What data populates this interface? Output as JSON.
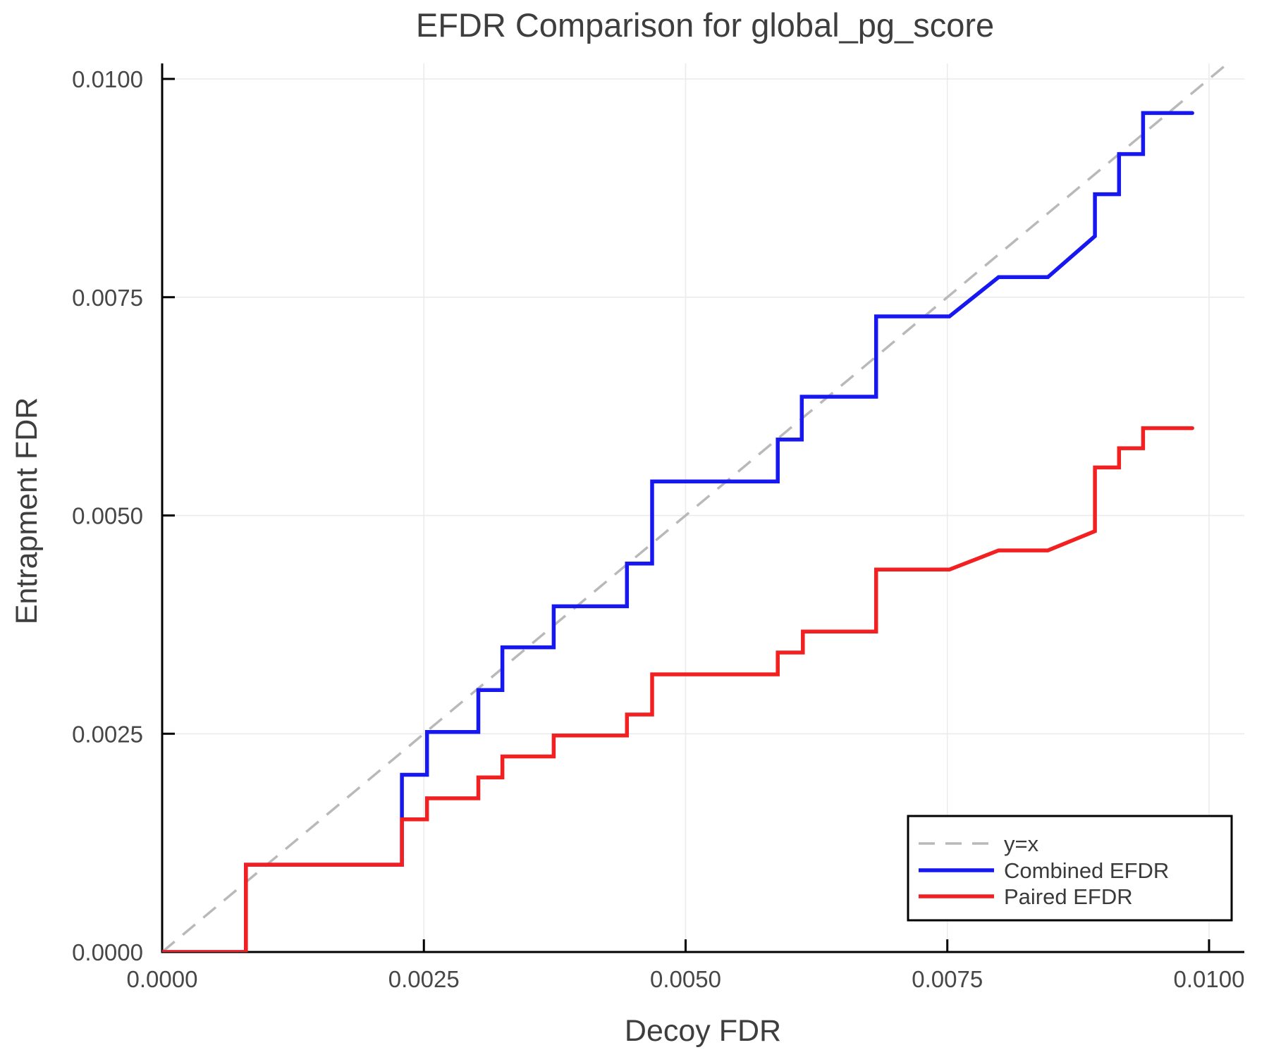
{
  "chart_data": {
    "type": "line",
    "title": "EFDR Comparison for global_pg_score",
    "xlabel": "Decoy FDR",
    "ylabel": "Entrapment FDR",
    "grid": true,
    "legend_position": "bottom-right",
    "xlim": [
      0,
      0.010337
    ],
    "ylim": [
      0,
      0.010178
    ],
    "xticks": {
      "values": [
        0.0,
        0.0025,
        0.005,
        0.0075,
        0.01
      ],
      "labels": [
        "0.0000",
        "0.0025",
        "0.0050",
        "0.0075",
        "0.0100"
      ]
    },
    "yticks": {
      "values": [
        0.0,
        0.0025,
        0.005,
        0.0075,
        0.01
      ],
      "labels": [
        "0.0000",
        "0.0025",
        "0.0050",
        "0.0075",
        "0.0100"
      ]
    },
    "reference_line": {
      "label": "y=x",
      "style": "dashed",
      "color": "#b9b9b9",
      "from": [
        0,
        0
      ],
      "to": [
        0.010337,
        0.010337
      ]
    },
    "series": [
      {
        "name": "Combined EFDR",
        "color": "#1717f0",
        "points": [
          [
            0.0,
            0.0
          ],
          [
            0.0008,
            0.0
          ],
          [
            0.0008,
            0.001
          ],
          [
            0.00229,
            0.001
          ],
          [
            0.00229,
            0.00203
          ],
          [
            0.00253,
            0.00203
          ],
          [
            0.00253,
            0.00252
          ],
          [
            0.00302,
            0.00252
          ],
          [
            0.00302,
            0.003
          ],
          [
            0.00325,
            0.003
          ],
          [
            0.00325,
            0.00349
          ],
          [
            0.00374,
            0.00349
          ],
          [
            0.00374,
            0.00396
          ],
          [
            0.00444,
            0.00396
          ],
          [
            0.00444,
            0.00445
          ],
          [
            0.00468,
            0.00445
          ],
          [
            0.00468,
            0.00539
          ],
          [
            0.00588,
            0.00539
          ],
          [
            0.00588,
            0.00587
          ],
          [
            0.00611,
            0.00587
          ],
          [
            0.00611,
            0.00636
          ],
          [
            0.00682,
            0.00636
          ],
          [
            0.00682,
            0.00728
          ],
          [
            0.00752,
            0.00728
          ],
          [
            0.00799,
            0.00773
          ],
          [
            0.00846,
            0.00773
          ],
          [
            0.00891,
            0.0082
          ],
          [
            0.00891,
            0.00868
          ],
          [
            0.00914,
            0.00868
          ],
          [
            0.00914,
            0.00914
          ],
          [
            0.00937,
            0.00914
          ],
          [
            0.00937,
            0.00961
          ],
          [
            0.00984,
            0.00961
          ]
        ]
      },
      {
        "name": "Paired EFDR",
        "color": "#f22020",
        "points": [
          [
            0.0,
            0.0
          ],
          [
            0.0008,
            0.0
          ],
          [
            0.0008,
            0.001
          ],
          [
            0.00229,
            0.001
          ],
          [
            0.00229,
            0.00152
          ],
          [
            0.00253,
            0.00152
          ],
          [
            0.00253,
            0.00176
          ],
          [
            0.00302,
            0.00176
          ],
          [
            0.00302,
            0.002
          ],
          [
            0.00325,
            0.002
          ],
          [
            0.00325,
            0.00224
          ],
          [
            0.00374,
            0.00224
          ],
          [
            0.00374,
            0.00248
          ],
          [
            0.00444,
            0.00248
          ],
          [
            0.00444,
            0.00272
          ],
          [
            0.00468,
            0.00272
          ],
          [
            0.00468,
            0.00318
          ],
          [
            0.00588,
            0.00318
          ],
          [
            0.00588,
            0.00343
          ],
          [
            0.00612,
            0.00343
          ],
          [
            0.00612,
            0.00367
          ],
          [
            0.00682,
            0.00367
          ],
          [
            0.00682,
            0.00438
          ],
          [
            0.00752,
            0.00438
          ],
          [
            0.00799,
            0.0046
          ],
          [
            0.00846,
            0.0046
          ],
          [
            0.00891,
            0.00482
          ],
          [
            0.00891,
            0.00555
          ],
          [
            0.00914,
            0.00555
          ],
          [
            0.00914,
            0.00577
          ],
          [
            0.00937,
            0.00577
          ],
          [
            0.00937,
            0.006
          ],
          [
            0.00984,
            0.006
          ]
        ]
      }
    ],
    "style": {
      "grid_color": "#ebebeb",
      "axis_color": "#000000",
      "text_color": "#3e3e3e",
      "background": "#ffffff",
      "legend_border": "#000000"
    }
  }
}
